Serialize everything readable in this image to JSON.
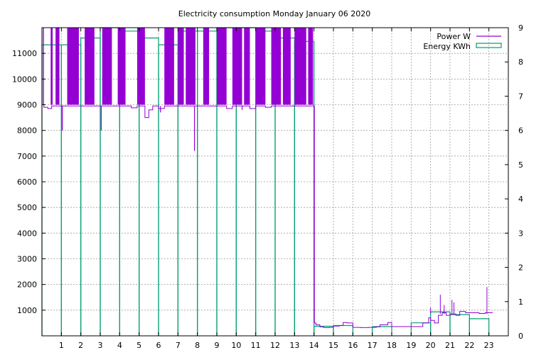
{
  "chart_data": {
    "type": "bar+line",
    "title": "Electricity consumption Monday January 06 2020",
    "xlabel": "",
    "ylabel": "",
    "xlim": [
      0,
      24
    ],
    "ylim": [
      0,
      12000
    ],
    "y2lim": [
      0,
      9
    ],
    "x_ticks": [
      1,
      2,
      3,
      4,
      5,
      6,
      7,
      8,
      9,
      10,
      11,
      12,
      13,
      14,
      15,
      16,
      17,
      18,
      19,
      20,
      21,
      22,
      23
    ],
    "y_ticks": [
      1000,
      2000,
      3000,
      4000,
      5000,
      6000,
      7000,
      8000,
      9000,
      10000,
      11000
    ],
    "y2_ticks": [
      0,
      1,
      2,
      3,
      4,
      5,
      6,
      7,
      8,
      9
    ],
    "grid": true,
    "legend_position": "top-right",
    "colors": {
      "power": "#9400d3",
      "energy": "#009e73"
    },
    "series": [
      {
        "name": "Power W",
        "type": "line",
        "color": "#9400d3",
        "baseline": [
          [
            0.0,
            9000
          ],
          [
            0.1,
            8900
          ],
          [
            0.3,
            8850
          ],
          [
            0.5,
            8950
          ],
          [
            0.8,
            8950
          ],
          [
            1.0,
            8950
          ],
          [
            1.3,
            8950
          ],
          [
            1.9,
            8950
          ],
          [
            2.1,
            8950
          ],
          [
            2.7,
            8950
          ],
          [
            2.9,
            8950
          ],
          [
            3.3,
            8950
          ],
          [
            3.6,
            8950
          ],
          [
            3.9,
            8950
          ],
          [
            4.3,
            8950
          ],
          [
            4.6,
            8880
          ],
          [
            4.9,
            8950
          ],
          [
            5.3,
            8500
          ],
          [
            5.5,
            8800
          ],
          [
            5.7,
            8950
          ],
          [
            6.0,
            8850
          ],
          [
            6.3,
            8950
          ],
          [
            6.8,
            8950
          ],
          [
            7.3,
            8950
          ],
          [
            7.9,
            8950
          ],
          [
            8.3,
            8950
          ],
          [
            8.6,
            8950
          ],
          [
            9.0,
            8950
          ],
          [
            9.5,
            8850
          ],
          [
            9.8,
            8950
          ],
          [
            10.3,
            8950
          ],
          [
            10.7,
            8850
          ],
          [
            11.0,
            8950
          ],
          [
            11.5,
            8900
          ],
          [
            11.8,
            8950
          ],
          [
            12.3,
            8950
          ],
          [
            12.8,
            8950
          ],
          [
            13.3,
            8950
          ],
          [
            13.6,
            8950
          ],
          [
            13.95,
            8950
          ],
          [
            14.02,
            500
          ],
          [
            14.1,
            430
          ],
          [
            14.3,
            350
          ],
          [
            14.5,
            320
          ],
          [
            14.8,
            330
          ],
          [
            15.0,
            380
          ],
          [
            15.3,
            400
          ],
          [
            15.5,
            520
          ],
          [
            15.7,
            500
          ],
          [
            16.0,
            330
          ],
          [
            16.4,
            320
          ],
          [
            16.8,
            330
          ],
          [
            17.2,
            350
          ],
          [
            17.4,
            430
          ],
          [
            17.8,
            520
          ],
          [
            18.0,
            360
          ],
          [
            18.5,
            360
          ],
          [
            18.8,
            360
          ],
          [
            19.0,
            360
          ],
          [
            19.3,
            360
          ],
          [
            19.6,
            500
          ],
          [
            19.9,
            700
          ],
          [
            20.0,
            600
          ],
          [
            20.2,
            500
          ],
          [
            20.4,
            800
          ],
          [
            20.6,
            900
          ],
          [
            20.8,
            800
          ],
          [
            21.0,
            850
          ],
          [
            21.3,
            800
          ],
          [
            21.5,
            950
          ],
          [
            21.8,
            900
          ],
          [
            22.2,
            900
          ],
          [
            22.5,
            870
          ],
          [
            22.8,
            900
          ],
          [
            23.2,
            900
          ]
        ],
        "spike_ranges": [
          [
            0.05,
            0.1
          ],
          [
            0.45,
            0.55
          ],
          [
            0.7,
            0.9
          ],
          [
            1.3,
            1.9
          ],
          [
            2.2,
            2.7
          ],
          [
            3.1,
            3.6
          ],
          [
            3.9,
            4.3
          ],
          [
            4.9,
            5.3
          ],
          [
            6.3,
            6.8
          ],
          [
            7.0,
            7.3
          ],
          [
            7.4,
            7.9
          ],
          [
            8.3,
            8.6
          ],
          [
            9.0,
            9.5
          ],
          [
            9.8,
            10.3
          ],
          [
            10.4,
            10.7
          ],
          [
            11.0,
            11.5
          ],
          [
            11.8,
            12.3
          ],
          [
            12.4,
            12.8
          ],
          [
            13.0,
            13.6
          ],
          [
            13.7,
            13.95
          ]
        ],
        "dips": [
          [
            1.05,
            8000
          ],
          [
            3.05,
            8000
          ],
          [
            7.85,
            7200
          ],
          [
            10.3,
            8800
          ],
          [
            6.1,
            8700
          ]
        ],
        "late_spikes": [
          [
            20.0,
            1100
          ],
          [
            20.5,
            1600
          ],
          [
            20.7,
            1200
          ],
          [
            21.1,
            1400
          ],
          [
            21.2,
            1300
          ],
          [
            22.9,
            1900
          ]
        ]
      },
      {
        "name": "Energy KWh",
        "type": "bar",
        "color": "#009e73",
        "width": 1,
        "x": [
          0.5,
          1.5,
          2.5,
          3.5,
          4.5,
          5.5,
          6.5,
          7.5,
          8.5,
          9.5,
          10.5,
          11.5,
          12.5,
          13.5,
          14.5,
          15.5,
          16.5,
          17.5,
          18.5,
          19.5,
          20.5,
          21.5,
          22.5,
          23.5
        ],
        "values": [
          8.5,
          8.5,
          8.7,
          9.2,
          8.9,
          8.7,
          8.5,
          8.9,
          8.9,
          9.1,
          9.3,
          8.9,
          8.7,
          8.6,
          0.28,
          0.3,
          0.0,
          0.27,
          0.0,
          0.38,
          0.7,
          0.62,
          0.5,
          0.0
        ]
      }
    ]
  }
}
